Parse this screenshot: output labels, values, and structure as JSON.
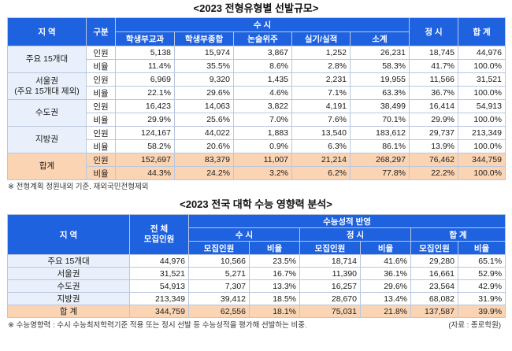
{
  "table1": {
    "title": "<2023 전형유형별 선발규모>",
    "headers": {
      "region": "지 역",
      "gubun": "구분",
      "susi": "수 시",
      "susi_cols": [
        "학생부교과",
        "학생부종합",
        "논술위주",
        "실기/실적",
        "소계"
      ],
      "jeongsi": "정 시",
      "total": "합 계"
    },
    "rows": [
      {
        "region": "주요 15개대",
        "items": [
          {
            "gubun": "인원",
            "values": [
              "5,138",
              "15,974",
              "3,867",
              "1,252",
              "26,231",
              "18,745",
              "44,976"
            ]
          },
          {
            "gubun": "비율",
            "values": [
              "11.4%",
              "35.5%",
              "8.6%",
              "2.8%",
              "58.3%",
              "41.7%",
              "100.0%"
            ]
          }
        ]
      },
      {
        "region": "서울권\n(주요 15개대 제외)",
        "items": [
          {
            "gubun": "인원",
            "values": [
              "6,969",
              "9,320",
              "1,435",
              "2,231",
              "19,955",
              "11,566",
              "31,521"
            ]
          },
          {
            "gubun": "비율",
            "values": [
              "22.1%",
              "29.6%",
              "4.6%",
              "7.1%",
              "63.3%",
              "36.7%",
              "100.0%"
            ]
          }
        ]
      },
      {
        "region": "수도권",
        "items": [
          {
            "gubun": "인원",
            "values": [
              "16,423",
              "14,063",
              "3,822",
              "4,191",
              "38,499",
              "16,414",
              "54,913"
            ]
          },
          {
            "gubun": "비율",
            "values": [
              "29.9%",
              "25.6%",
              "7.0%",
              "7.6%",
              "70.1%",
              "29.9%",
              "100.0%"
            ]
          }
        ]
      },
      {
        "region": "지방권",
        "items": [
          {
            "gubun": "인원",
            "values": [
              "124,167",
              "44,022",
              "1,883",
              "13,540",
              "183,612",
              "29,737",
              "213,349"
            ]
          },
          {
            "gubun": "비율",
            "values": [
              "58.2%",
              "20.6%",
              "0.9%",
              "6.3%",
              "86.1%",
              "13.9%",
              "100.0%"
            ]
          }
        ]
      },
      {
        "region": "합계",
        "items": [
          {
            "gubun": "인원",
            "values": [
              "152,697",
              "83,379",
              "11,007",
              "21,214",
              "268,297",
              "76,462",
              "344,759"
            ]
          },
          {
            "gubun": "비율",
            "values": [
              "44.3%",
              "24.2%",
              "3.2%",
              "6.2%",
              "77.8%",
              "22.2%",
              "100.0%"
            ]
          }
        ]
      }
    ],
    "note": "※ 전형계획 정원내외 기준. 재외국민전형제외"
  },
  "table2": {
    "title": "<2023 전국 대학 수능 영향력 분석>",
    "headers": {
      "region": "지 역",
      "total_recruit": "전 체\n모집인원",
      "reflect": "수능성적 반영",
      "susi": "수 시",
      "jeongsi": "정 시",
      "total": "합 계",
      "sub_recruit": "모집인원",
      "sub_ratio": "비율"
    },
    "rows": [
      {
        "region": "주요 15개대",
        "values": [
          "44,976",
          "10,566",
          "23.5%",
          "18,714",
          "41.6%",
          "29,280",
          "65.1%"
        ]
      },
      {
        "region": "서울권",
        "values": [
          "31,521",
          "5,271",
          "16.7%",
          "11,390",
          "36.1%",
          "16,661",
          "52.9%"
        ]
      },
      {
        "region": "수도권",
        "values": [
          "54,913",
          "7,307",
          "13.3%",
          "16,257",
          "29.6%",
          "23,564",
          "42.9%"
        ]
      },
      {
        "region": "지방권",
        "values": [
          "213,349",
          "39,412",
          "18.5%",
          "28,670",
          "13.4%",
          "68,082",
          "31.9%"
        ]
      },
      {
        "region": "합 계",
        "values": [
          "344,759",
          "62,556",
          "18.1%",
          "75,031",
          "21.8%",
          "137,587",
          "39.9%"
        ]
      }
    ],
    "note": "※ 수능영향력 : 수시 수능최저학력기준 적용 또는 정시 선발 등 수능성적을 평가해 선발하는 비중.",
    "source": "(자료 : 종로학원)"
  }
}
